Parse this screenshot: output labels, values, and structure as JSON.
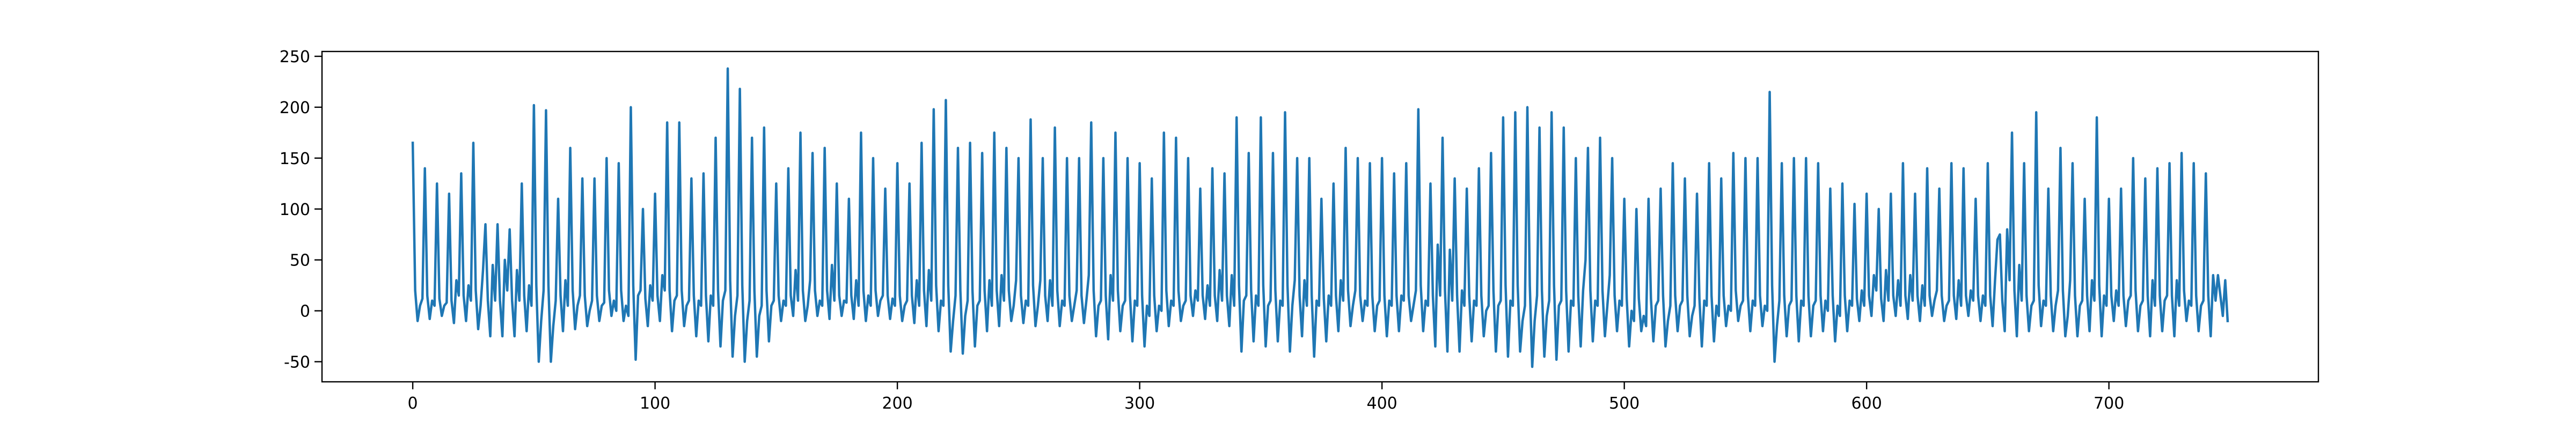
{
  "chart_data": {
    "type": "line",
    "series": [
      {
        "color": "#1f77b4",
        "values": [
          165,
          20,
          -10,
          5,
          12,
          140,
          15,
          -8,
          10,
          5,
          125,
          12,
          -5,
          5,
          8,
          115,
          10,
          -12,
          30,
          15,
          135,
          15,
          -10,
          25,
          10,
          165,
          20,
          -18,
          5,
          40,
          85,
          10,
          -25,
          45,
          10,
          85,
          10,
          -25,
          50,
          20,
          80,
          10,
          -25,
          40,
          10,
          125,
          15,
          -20,
          25,
          5,
          202,
          25,
          -50,
          -10,
          20,
          197,
          25,
          -50,
          -15,
          10,
          110,
          15,
          -20,
          30,
          5,
          160,
          20,
          -18,
          5,
          15,
          130,
          15,
          -15,
          0,
          10,
          130,
          15,
          -10,
          5,
          8,
          150,
          20,
          -5,
          10,
          0,
          145,
          20,
          -10,
          5,
          -5,
          200,
          25,
          -48,
          15,
          20,
          100,
          12,
          -15,
          25,
          10,
          115,
          15,
          -10,
          35,
          20,
          185,
          20,
          -20,
          10,
          15,
          185,
          20,
          -15,
          5,
          10,
          130,
          15,
          -25,
          10,
          5,
          135,
          15,
          -30,
          15,
          5,
          170,
          20,
          -35,
          10,
          20,
          238,
          30,
          -45,
          -5,
          15,
          218,
          25,
          -50,
          -10,
          10,
          170,
          20,
          -45,
          -5,
          5,
          180,
          20,
          -30,
          5,
          10,
          125,
          15,
          -10,
          10,
          5,
          140,
          15,
          -5,
          40,
          10,
          175,
          20,
          -10,
          5,
          30,
          155,
          20,
          -5,
          10,
          5,
          160,
          20,
          -8,
          45,
          10,
          125,
          15,
          -5,
          10,
          8,
          110,
          15,
          -8,
          30,
          5,
          175,
          20,
          -10,
          15,
          5,
          150,
          20,
          -5,
          10,
          15,
          120,
          15,
          -8,
          12,
          5,
          145,
          15,
          -10,
          5,
          10,
          125,
          15,
          -12,
          30,
          5,
          165,
          20,
          -15,
          40,
          10,
          198,
          25,
          -20,
          10,
          5,
          207,
          25,
          -40,
          -10,
          15,
          160,
          20,
          -42,
          -5,
          10,
          165,
          20,
          -35,
          5,
          10,
          155,
          20,
          -20,
          30,
          5,
          175,
          20,
          -15,
          35,
          10,
          160,
          20,
          -10,
          5,
          30,
          150,
          15,
          -12,
          10,
          5,
          188,
          25,
          -15,
          5,
          30,
          150,
          15,
          -10,
          30,
          5,
          180,
          20,
          -15,
          10,
          5,
          150,
          15,
          -10,
          5,
          20,
          150,
          15,
          -12,
          10,
          35,
          185,
          20,
          -25,
          5,
          10,
          150,
          15,
          -28,
          35,
          10,
          175,
          20,
          -20,
          5,
          10,
          150,
          15,
          -30,
          10,
          5,
          145,
          15,
          -35,
          5,
          -5,
          130,
          15,
          -20,
          5,
          0,
          175,
          20,
          -15,
          10,
          5,
          170,
          20,
          -10,
          5,
          10,
          150,
          15,
          -5,
          20,
          10,
          120,
          15,
          -8,
          25,
          5,
          140,
          15,
          -10,
          40,
          10,
          135,
          15,
          -15,
          35,
          5,
          190,
          25,
          -40,
          10,
          15,
          155,
          20,
          -30,
          15,
          5,
          190,
          25,
          -35,
          5,
          10,
          155,
          20,
          -30,
          10,
          5,
          195,
          25,
          -40,
          5,
          30,
          150,
          15,
          -25,
          30,
          5,
          150,
          15,
          -45,
          10,
          5,
          110,
          12,
          -30,
          15,
          5,
          125,
          15,
          -20,
          30,
          10,
          160,
          20,
          -15,
          5,
          20,
          150,
          15,
          -10,
          10,
          5,
          145,
          15,
          -20,
          5,
          10,
          150,
          15,
          -25,
          10,
          5,
          135,
          15,
          -20,
          15,
          10,
          145,
          15,
          -10,
          5,
          20,
          198,
          25,
          -20,
          10,
          5,
          125,
          15,
          -35,
          65,
          15,
          170,
          20,
          -40,
          60,
          10,
          130,
          15,
          -40,
          20,
          5,
          120,
          15,
          -30,
          10,
          5,
          140,
          15,
          -25,
          0,
          5,
          155,
          20,
          -40,
          5,
          10,
          190,
          25,
          -45,
          10,
          5,
          195,
          25,
          -40,
          -10,
          5,
          200,
          25,
          -55,
          -10,
          15,
          180,
          20,
          -45,
          -5,
          10,
          195,
          25,
          -48,
          5,
          10,
          180,
          20,
          -40,
          10,
          5,
          150,
          15,
          -35,
          20,
          50,
          160,
          20,
          -30,
          10,
          5,
          170,
          20,
          -25,
          5,
          35,
          150,
          15,
          -20,
          10,
          5,
          110,
          12,
          -35,
          0,
          -10,
          100,
          12,
          -20,
          -5,
          -15,
          110,
          12,
          -30,
          5,
          10,
          120,
          15,
          -35,
          -10,
          5,
          145,
          15,
          -20,
          5,
          10,
          130,
          15,
          -25,
          -5,
          5,
          115,
          12,
          -35,
          10,
          5,
          145,
          15,
          -30,
          5,
          -5,
          130,
          15,
          -15,
          5,
          0,
          155,
          20,
          -10,
          5,
          10,
          150,
          15,
          -20,
          10,
          5,
          150,
          15,
          -15,
          5,
          0,
          215,
          25,
          -50,
          -15,
          10,
          145,
          15,
          -25,
          5,
          10,
          150,
          15,
          -30,
          10,
          5,
          150,
          15,
          -25,
          5,
          10,
          145,
          15,
          -20,
          10,
          0,
          120,
          15,
          -30,
          5,
          -5,
          125,
          15,
          -20,
          10,
          5,
          105,
          12,
          -10,
          20,
          5,
          115,
          15,
          -5,
          35,
          20,
          100,
          12,
          -10,
          40,
          10,
          115,
          15,
          -5,
          30,
          5,
          145,
          15,
          -8,
          35,
          10,
          115,
          15,
          -10,
          25,
          5,
          140,
          15,
          -5,
          10,
          20,
          120,
          15,
          -10,
          5,
          10,
          145,
          15,
          -8,
          30,
          5,
          140,
          15,
          -5,
          20,
          10,
          110,
          15,
          -10,
          15,
          5,
          145,
          15,
          -15,
          30,
          70,
          75,
          10,
          -20,
          80,
          30,
          175,
          20,
          -25,
          45,
          10,
          145,
          15,
          -20,
          5,
          10,
          195,
          25,
          -15,
          10,
          5,
          120,
          15,
          -20,
          5,
          20,
          160,
          20,
          -25,
          -5,
          30,
          145,
          15,
          -25,
          5,
          10,
          110,
          15,
          -20,
          30,
          10,
          190,
          25,
          -25,
          15,
          5,
          110,
          15,
          -10,
          20,
          5,
          120,
          15,
          -15,
          10,
          15,
          150,
          20,
          -20,
          5,
          10,
          130,
          15,
          -25,
          30,
          5,
          140,
          15,
          -20,
          10,
          15,
          145,
          15,
          -25,
          30,
          5,
          155,
          20,
          -10,
          10,
          5,
          145,
          15,
          -20,
          5,
          10,
          135,
          15,
          -25,
          35,
          10,
          35,
          15,
          -5,
          30,
          -10
        ]
      }
    ],
    "xlim": [
      -37.45,
      786.45
    ],
    "xticks": [
      0,
      100,
      200,
      300,
      400,
      500,
      600,
      700
    ],
    "ylim": [
      -69.75,
      254.75
    ],
    "yticks": [
      -50,
      0,
      50,
      100,
      150,
      200,
      250
    ]
  }
}
